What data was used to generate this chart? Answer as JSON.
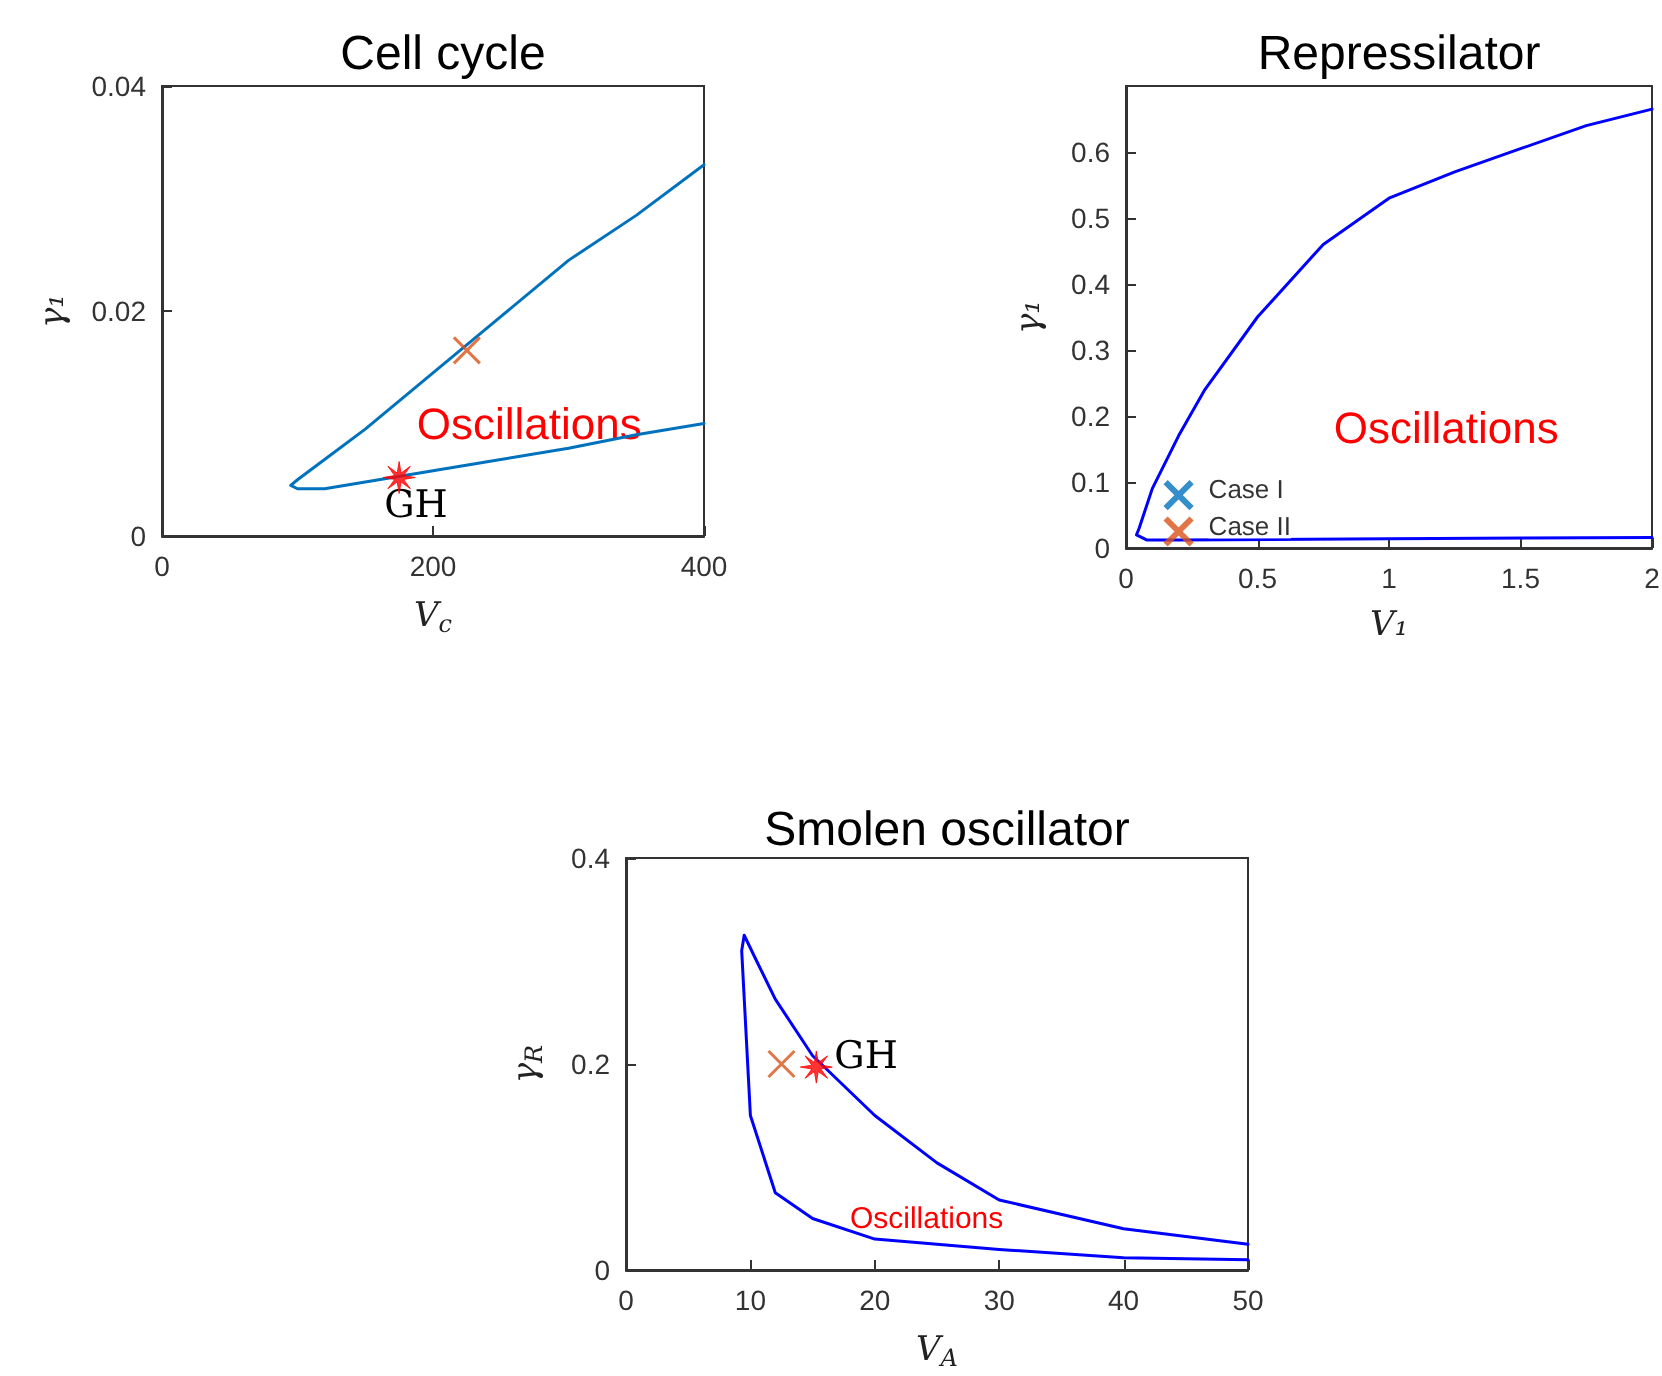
{
  "chart_data": [
    {
      "type": "line",
      "title": "Cell cycle",
      "xlabel": "V$_{c}$",
      "ylabel": "γ₁",
      "xlim": [
        0,
        400
      ],
      "xticks": [
        0,
        200,
        400
      ],
      "ylim": [
        0,
        0.04
      ],
      "yticks": [
        0,
        0.02,
        0.04
      ],
      "grid": false,
      "legend": false,
      "annotations": [
        "Oscillations",
        "GH"
      ],
      "series": [
        {
          "color": "#0072bd",
          "marker": "none",
          "line_style": "solid",
          "x": [
            400,
            350,
            300,
            250,
            200,
            150,
            120,
            100,
            95,
            100,
            120,
            150,
            200,
            250,
            300,
            350,
            400
          ],
          "values": [
            0.033,
            0.0285,
            0.0245,
            0.0195,
            0.0145,
            0.0095,
            0.0068,
            0.005,
            0.0045,
            0.0042,
            0.0042,
            0.0048,
            0.0058,
            0.0068,
            0.0078,
            0.009,
            0.01
          ]
        },
        {
          "type": "scatter",
          "color": "#d95319",
          "marker": "cross",
          "x": [
            225
          ],
          "values": [
            0.0165
          ]
        },
        {
          "type": "scatter",
          "color": "#ff0000",
          "marker": "star",
          "x": [
            175
          ],
          "values": [
            0.0052
          ]
        }
      ]
    },
    {
      "type": "line",
      "title": "Repressilator",
      "xlabel": "V₁",
      "ylabel": "γ₁",
      "xlim": [
        0,
        2
      ],
      "xticks": [
        0,
        0.5,
        1,
        1.5,
        2
      ],
      "ylim": [
        0,
        0.7
      ],
      "yticks": [
        0,
        0.1,
        0.2,
        0.3,
        0.4,
        0.5,
        0.6
      ],
      "grid": false,
      "legend": false,
      "annotations": [
        "Oscillations"
      ],
      "series": [
        {
          "color": "#0000ff",
          "marker": "none",
          "line_style": "solid",
          "x": [
            2,
            1.75,
            1.5,
            1.25,
            1,
            0.75,
            0.5,
            0.3,
            0.2,
            0.1,
            0.05,
            0.04,
            0.08,
            0.2,
            1,
            2
          ],
          "values": [
            0.665,
            0.64,
            0.605,
            0.57,
            0.53,
            0.46,
            0.35,
            0.24,
            0.17,
            0.09,
            0.03,
            0.02,
            0.012,
            0.012,
            0.014,
            0.016
          ]
        },
        {
          "type": "scatter",
          "name": "Case I",
          "color": "#0072bd",
          "marker": "cross",
          "x": [
            0.2
          ],
          "values": [
            0.08
          ]
        },
        {
          "type": "scatter",
          "name": "Case II",
          "color": "#d95319",
          "marker": "cross",
          "x": [
            0.2
          ],
          "values": [
            0.025
          ]
        }
      ]
    },
    {
      "type": "line",
      "title": "Smolen oscillator",
      "xlabel": "V$_{A}$",
      "ylabel": "γ$_{R}$",
      "xlim": [
        0,
        50
      ],
      "xticks": [
        0,
        10,
        20,
        30,
        40,
        50
      ],
      "ylim": [
        0,
        0.4
      ],
      "yticks": [
        0,
        0.2,
        0.4
      ],
      "grid": false,
      "legend": false,
      "annotations": [
        "Oscillations",
        "GH"
      ],
      "series": [
        {
          "color": "#0000ff",
          "marker": "none",
          "line_style": "solid",
          "x": [
            50,
            40,
            30,
            20,
            15,
            12,
            10,
            9.3,
            9.5,
            10.5,
            12,
            15,
            20,
            25,
            30,
            40,
            50
          ],
          "values": [
            0.01,
            0.012,
            0.02,
            0.03,
            0.05,
            0.075,
            0.15,
            0.31,
            0.325,
            0.3,
            0.263,
            0.208,
            0.15,
            0.104,
            0.068,
            0.04,
            0.025
          ]
        },
        {
          "type": "scatter",
          "color": "#d95319",
          "marker": "cross",
          "x": [
            12.5
          ],
          "values": [
            0.2
          ]
        },
        {
          "type": "scatter",
          "color": "#ff0000",
          "marker": "star",
          "x": [
            15.3
          ],
          "values": [
            0.197
          ]
        }
      ]
    }
  ]
}
